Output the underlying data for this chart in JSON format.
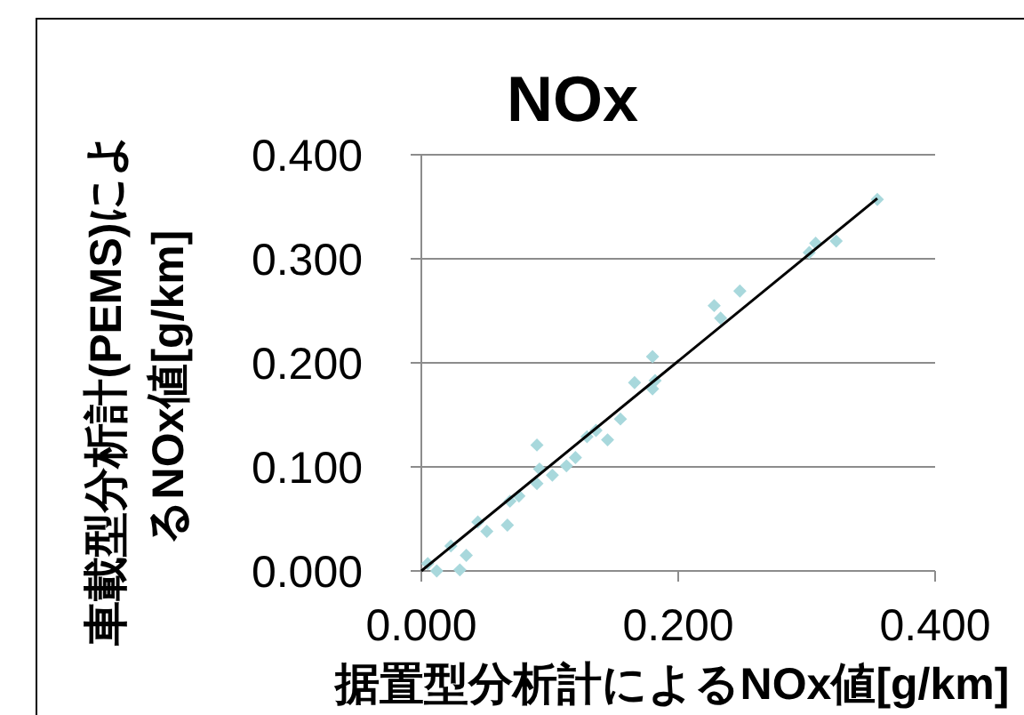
{
  "chart_data": {
    "type": "scatter",
    "title": "NOx",
    "xlabel": "据置型分析計によるNOx値[g/km]",
    "ylabel": "車載型分析計(PEMS)によるNOx値[g/km]",
    "xlim": [
      0,
      0.4
    ],
    "ylim": [
      0,
      0.4
    ],
    "xticks": [
      {
        "value": 0,
        "label": "0.000"
      },
      {
        "value": 0.2,
        "label": "0.200"
      },
      {
        "value": 0.4,
        "label": "0.400"
      }
    ],
    "yticks": [
      {
        "value": 0,
        "label": "0.000"
      },
      {
        "value": 0.1,
        "label": "0.100"
      },
      {
        "value": 0.2,
        "label": "0.200"
      },
      {
        "value": 0.3,
        "label": "0.300"
      },
      {
        "value": 0.4,
        "label": "0.400"
      }
    ],
    "grid": "y",
    "series": [
      {
        "marker": "diamond",
        "color": "#a8d8dc",
        "x": [
          0.355,
          0.323,
          0.307,
          0.302,
          0.248,
          0.228,
          0.233,
          0.18,
          0.166,
          0.18,
          0.182,
          0.155,
          0.145,
          0.136,
          0.129,
          0.12,
          0.113,
          0.09,
          0.092,
          0.102,
          0.09,
          0.076,
          0.069,
          0.067,
          0.051,
          0.044,
          0.035,
          0.03,
          0.023,
          0.012,
          0.005
        ],
        "values": [
          0.357,
          0.317,
          0.315,
          0.306,
          0.269,
          0.255,
          0.243,
          0.206,
          0.181,
          0.175,
          0.183,
          0.146,
          0.126,
          0.135,
          0.129,
          0.109,
          0.101,
          0.121,
          0.098,
          0.092,
          0.084,
          0.072,
          0.067,
          0.044,
          0.038,
          0.047,
          0.015,
          0.001,
          0.024,
          0,
          0.007
        ]
      },
      {
        "type": "line",
        "color": "#000000",
        "x": [
          0,
          0.355
        ],
        "values": [
          0,
          0.358
        ]
      }
    ]
  }
}
